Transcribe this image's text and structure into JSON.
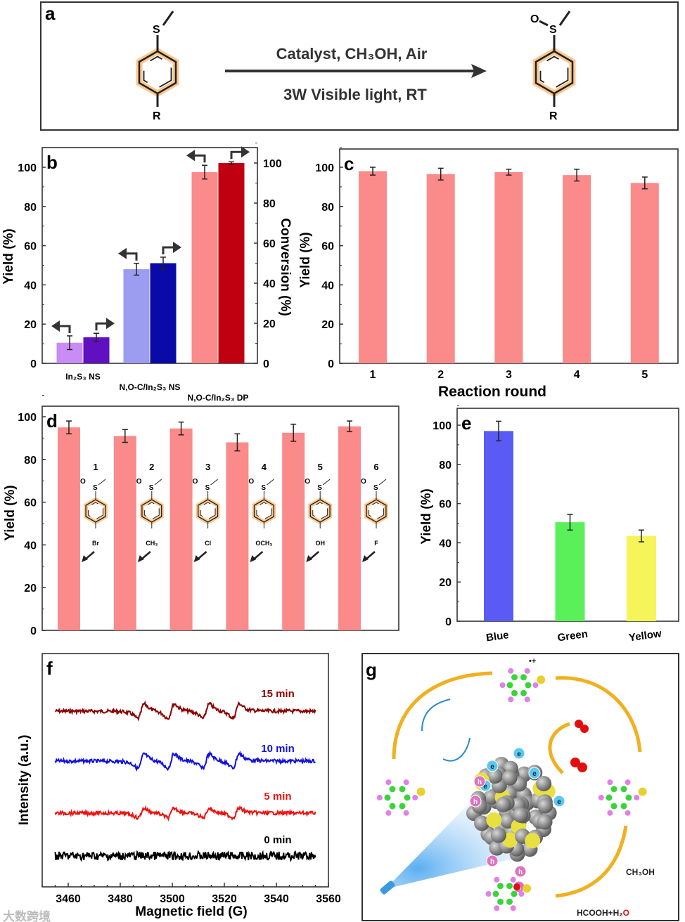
{
  "panel_a": {
    "label": "a",
    "condition_top": "Catalyst, CH₃OH, Air",
    "condition_bottom": "3W  Visible light, RT",
    "reactant_atoms": [
      "S",
      "R"
    ],
    "product_atoms": [
      "O",
      "S",
      "R"
    ]
  },
  "chart_data": [
    {
      "panel": "b",
      "type": "bar",
      "categories": [
        "In₂S₃ NS",
        "N,O-C/In₂S₃ NS",
        "N,O-C/In₂S₃ DP"
      ],
      "ylabel": "Yield (%)",
      "y2label": "Conversion (%)",
      "ylim": [
        0,
        110
      ],
      "y2lim": [
        0,
        105
      ],
      "yticks": [
        "0",
        "20",
        "40",
        "60",
        "80",
        "100"
      ],
      "y2ticks": [
        "0",
        "20",
        "40",
        "60",
        "80",
        "100"
      ],
      "series": [
        {
          "name": "Yield",
          "axis": "left",
          "values": [
            10.5,
            48,
            97.5
          ],
          "errors": [
            3.5,
            3,
            3.5
          ],
          "colors": [
            "#c98cf5",
            "#9c9cf0",
            "#fb8a8a"
          ]
        },
        {
          "name": "Conversion",
          "axis": "right",
          "values": [
            13,
            50,
            100
          ],
          "errors": [
            2,
            3,
            0.6
          ],
          "colors": [
            "#6010c0",
            "#0a0aa8",
            "#c00010"
          ]
        }
      ]
    },
    {
      "panel": "c",
      "type": "bar",
      "categories": [
        "1",
        "2",
        "3",
        "4",
        "5"
      ],
      "xlabel": "Reaction round",
      "ylabel": "Yield (%)",
      "ylim": [
        0,
        110
      ],
      "yticks": [
        "0",
        "20",
        "40",
        "60",
        "80",
        "100"
      ],
      "values": [
        98,
        96.5,
        97.5,
        96,
        92
      ],
      "errors": [
        2,
        3,
        1.5,
        3,
        3
      ],
      "color": "#fb8a8a"
    },
    {
      "panel": "d",
      "type": "bar",
      "categories": [
        "1",
        "2",
        "3",
        "4",
        "5",
        "6"
      ],
      "substituents": [
        "Br",
        "CH₃",
        "Cl",
        "OCH₃",
        "OH",
        "F"
      ],
      "ylabel": "Yield (%)",
      "ylim": [
        0,
        100
      ],
      "yticks": [
        "0",
        "20",
        "40",
        "60",
        "80",
        "100"
      ],
      "values": [
        95,
        91,
        94.5,
        88,
        92.5,
        95.5
      ],
      "errors": [
        3,
        3,
        3,
        4,
        4,
        2.5
      ],
      "color": "#fb8a8a"
    },
    {
      "panel": "e",
      "type": "bar",
      "categories": [
        "Blue",
        "Green",
        "Yellow"
      ],
      "ylabel": "Yield (%)",
      "ylim": [
        0,
        105
      ],
      "yticks": [
        "0",
        "20",
        "40",
        "60",
        "80",
        "100"
      ],
      "values": [
        97,
        50.5,
        43.5
      ],
      "errors": [
        5,
        4,
        3
      ],
      "colors": [
        "#5a5af5",
        "#5af05a",
        "#f5f55a"
      ]
    },
    {
      "panel": "f",
      "type": "line",
      "xlabel": "Magnetic field (G)",
      "ylabel": "Intensity (a.u.)",
      "xlim": [
        3450,
        3560
      ],
      "xticks": [
        "3460",
        "3480",
        "3500",
        "3520",
        "3540",
        "3560"
      ],
      "x_range": [
        3455,
        3555
      ],
      "line_centers": [
        3488,
        3499.5,
        3513,
        3524.5
      ],
      "series": [
        {
          "name": "15 min",
          "color": "#8b0000",
          "amplitude": 1.0
        },
        {
          "name": "10 min",
          "color": "#1010e0",
          "amplitude": 1.0
        },
        {
          "name": "5 min",
          "color": "#f01010",
          "amplitude": 0.65
        },
        {
          "name": "0 min",
          "color": "#000000",
          "amplitude": 0.0
        }
      ]
    }
  ],
  "panel_g": {
    "label": "g",
    "reagent": "CH₃OH",
    "byproduct_1": "HCOOH+H₂",
    "byproduct_2": "O",
    "electron": "e",
    "hole": "h",
    "radical_cation": "•+"
  },
  "watermark": "大数跨境"
}
